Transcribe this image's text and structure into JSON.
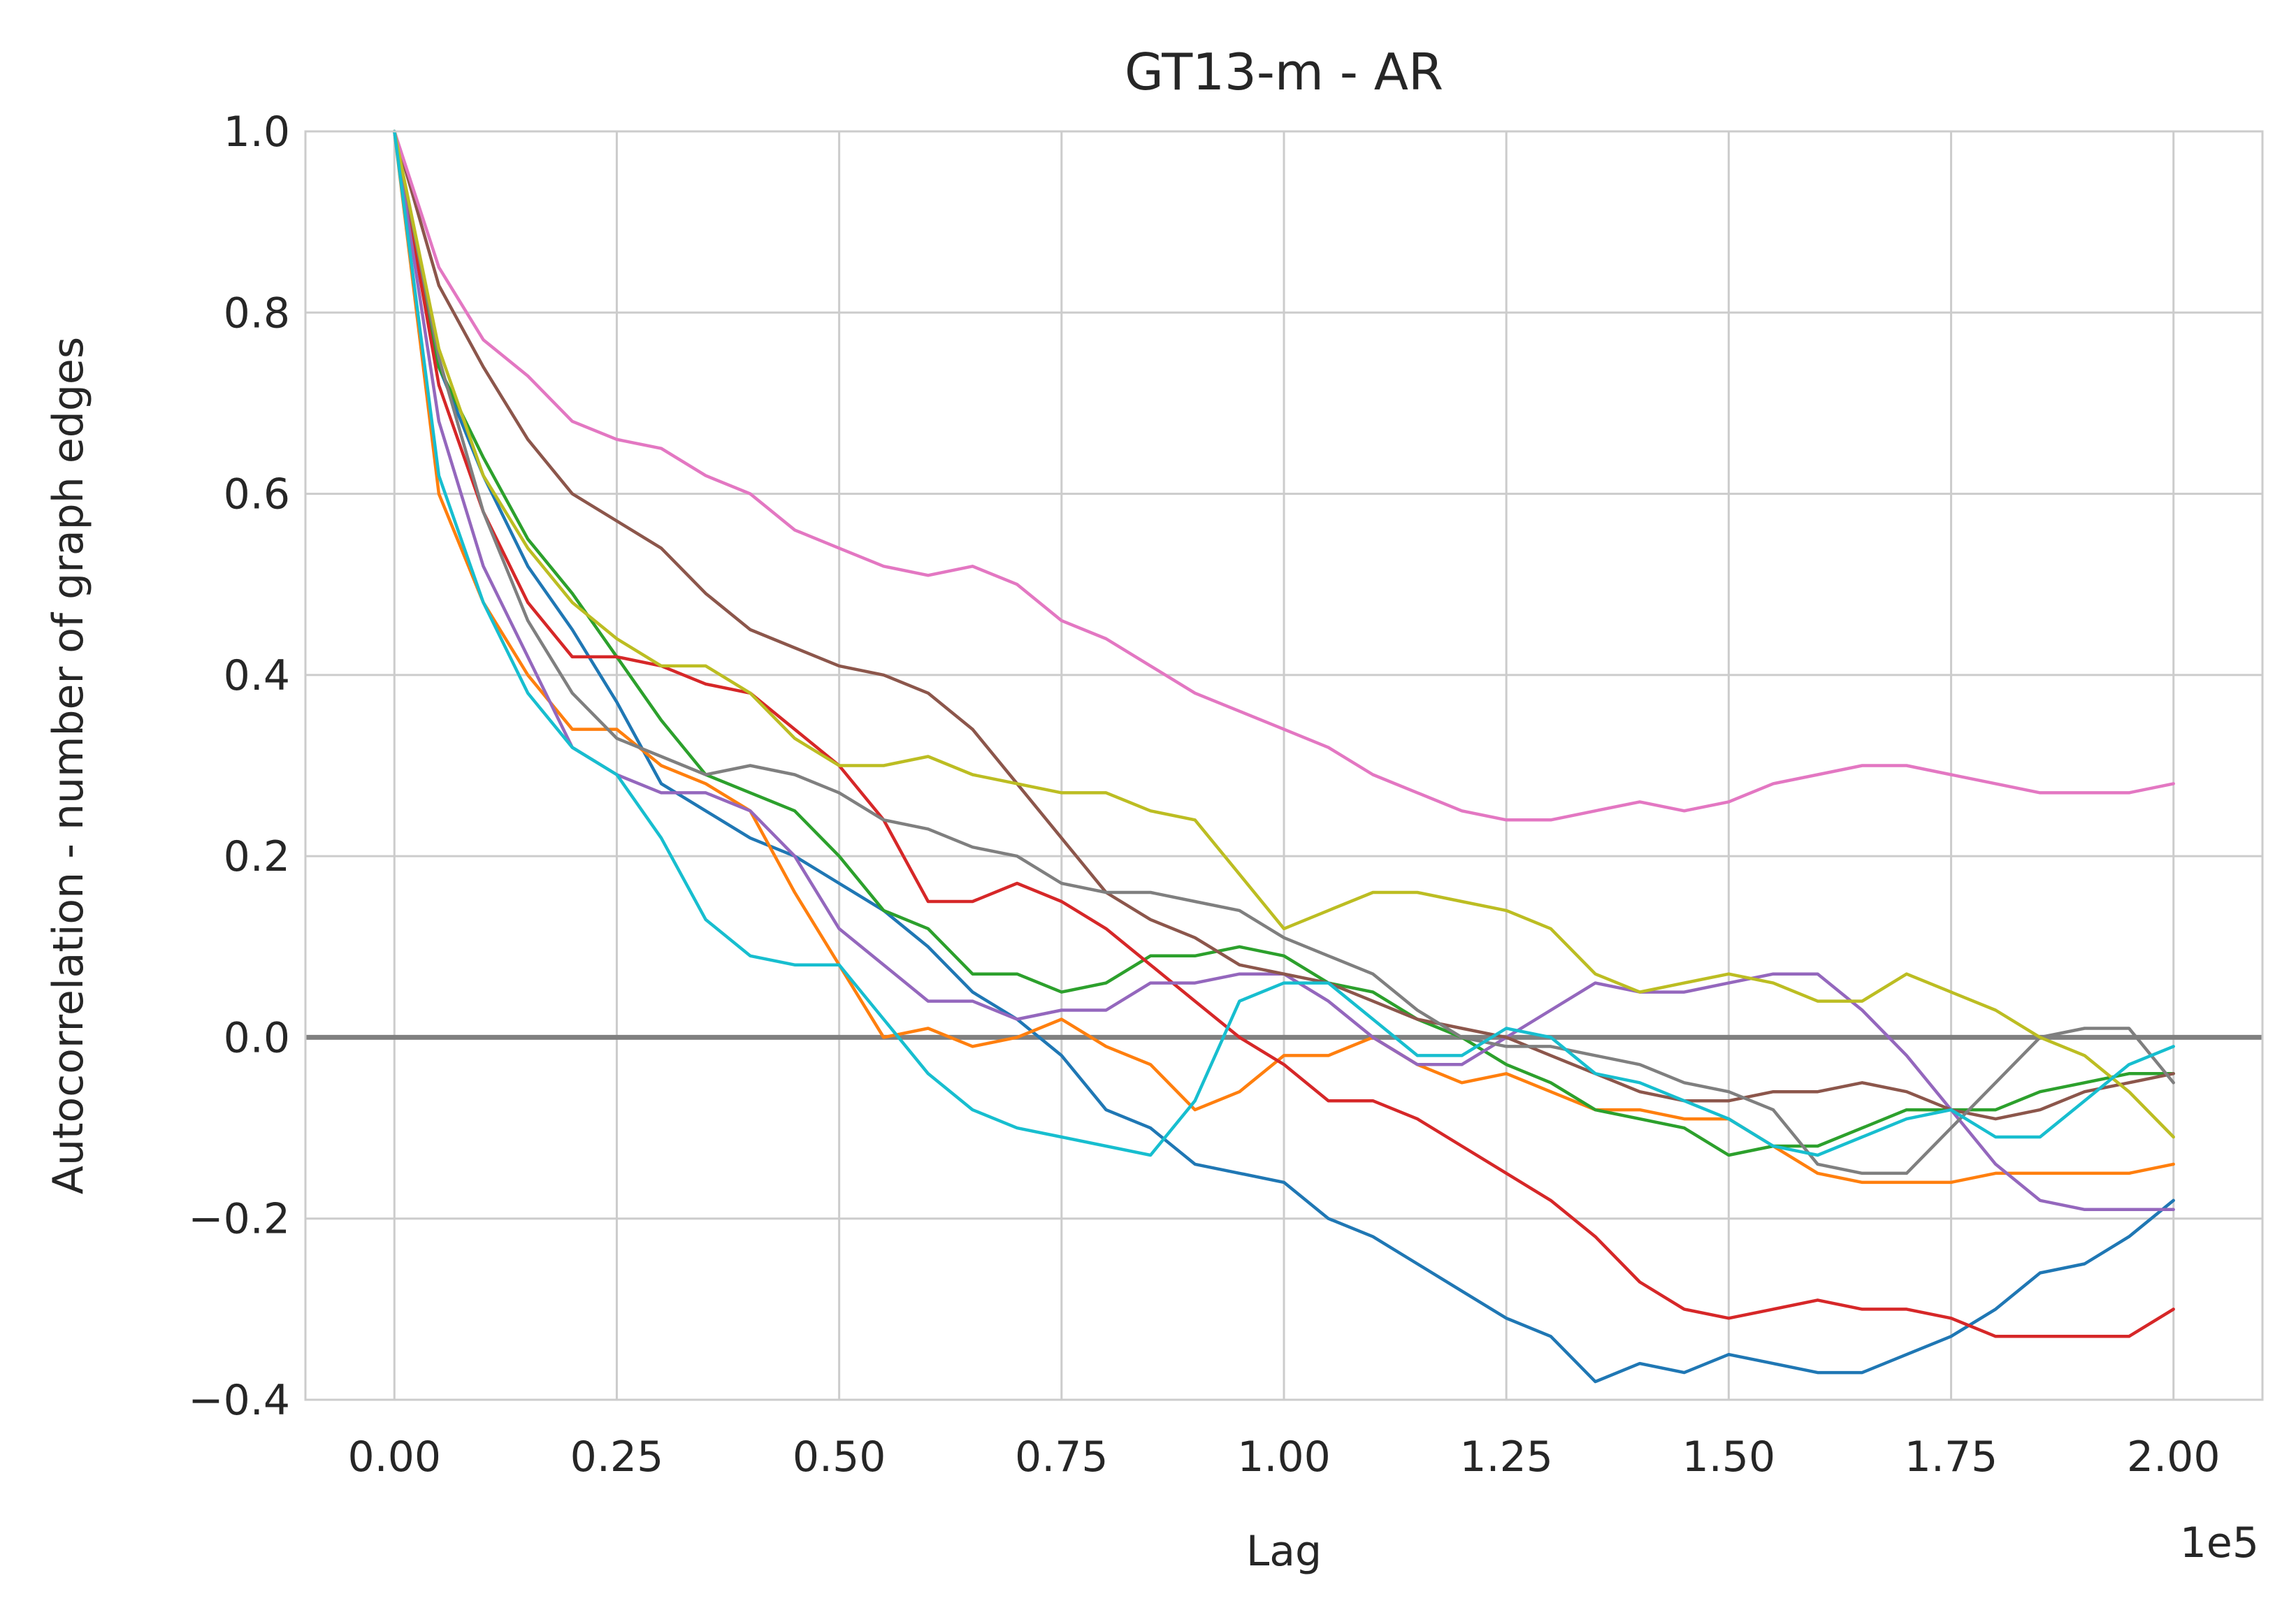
{
  "chart_data": {
    "type": "line",
    "title": "GT13-m - AR",
    "xlabel": "Lag",
    "ylabel": "Autocorrelation - number of graph edges",
    "x_offset_text": "1e5",
    "xlim": [
      -0.1,
      2.1
    ],
    "ylim": [
      -0.4,
      1.0
    ],
    "grid": true,
    "legend": "none",
    "x_ticks": [
      0.0,
      0.25,
      0.5,
      0.75,
      1.0,
      1.25,
      1.5,
      1.75,
      2.0
    ],
    "x_tick_labels": [
      "0.00",
      "0.25",
      "0.50",
      "0.75",
      "1.00",
      "1.25",
      "1.50",
      "1.75",
      "2.00"
    ],
    "y_ticks": [
      -0.4,
      -0.2,
      0.0,
      0.2,
      0.4,
      0.6,
      0.8,
      1.0
    ],
    "y_tick_labels": [
      "−0.4",
      "−0.2",
      "0.0",
      "0.2",
      "0.4",
      "0.6",
      "0.8",
      "1.0"
    ],
    "reference_line": {
      "y": 0.0,
      "color": "#808080"
    },
    "x": [
      0.0,
      0.05,
      0.1,
      0.15,
      0.2,
      0.25,
      0.3,
      0.35,
      0.4,
      0.45,
      0.5,
      0.55,
      0.6,
      0.65,
      0.7,
      0.75,
      0.8,
      0.85,
      0.9,
      0.95,
      1.0,
      1.05,
      1.1,
      1.15,
      1.2,
      1.25,
      1.3,
      1.35,
      1.4,
      1.45,
      1.5,
      1.55,
      1.6,
      1.65,
      1.7,
      1.75,
      1.8,
      1.85,
      1.9,
      1.95,
      2.0
    ],
    "series": [
      {
        "color": "#1f77b4",
        "values": [
          1.0,
          0.74,
          0.62,
          0.52,
          0.45,
          0.37,
          0.28,
          0.25,
          0.22,
          0.2,
          0.17,
          0.14,
          0.1,
          0.05,
          0.02,
          -0.02,
          -0.08,
          -0.1,
          -0.14,
          -0.15,
          -0.16,
          -0.2,
          -0.22,
          -0.25,
          -0.28,
          -0.31,
          -0.33,
          -0.38,
          -0.36,
          -0.37,
          -0.35,
          -0.36,
          -0.37,
          -0.37,
          -0.35,
          -0.33,
          -0.3,
          -0.26,
          -0.25,
          -0.22,
          -0.18
        ]
      },
      {
        "color": "#ff7f0e",
        "values": [
          1.0,
          0.6,
          0.48,
          0.4,
          0.34,
          0.34,
          0.3,
          0.28,
          0.25,
          0.16,
          0.08,
          0.0,
          0.01,
          -0.01,
          0.0,
          0.02,
          -0.01,
          -0.03,
          -0.08,
          -0.06,
          -0.02,
          -0.02,
          0.0,
          -0.03,
          -0.05,
          -0.04,
          -0.06,
          -0.08,
          -0.08,
          -0.09,
          -0.09,
          -0.12,
          -0.15,
          -0.16,
          -0.16,
          -0.16,
          -0.15,
          -0.15,
          -0.15,
          -0.15,
          -0.14
        ]
      },
      {
        "color": "#2ca02c",
        "values": [
          1.0,
          0.74,
          0.64,
          0.55,
          0.49,
          0.42,
          0.35,
          0.29,
          0.27,
          0.25,
          0.2,
          0.14,
          0.12,
          0.07,
          0.07,
          0.05,
          0.06,
          0.09,
          0.09,
          0.1,
          0.09,
          0.06,
          0.05,
          0.02,
          0.0,
          -0.03,
          -0.05,
          -0.08,
          -0.09,
          -0.1,
          -0.13,
          -0.12,
          -0.12,
          -0.1,
          -0.08,
          -0.08,
          -0.08,
          -0.06,
          -0.05,
          -0.04,
          -0.04
        ]
      },
      {
        "color": "#d62728",
        "values": [
          1.0,
          0.72,
          0.58,
          0.48,
          0.42,
          0.42,
          0.41,
          0.39,
          0.38,
          0.34,
          0.3,
          0.24,
          0.15,
          0.15,
          0.17,
          0.15,
          0.12,
          0.08,
          0.04,
          0.0,
          -0.03,
          -0.07,
          -0.07,
          -0.09,
          -0.12,
          -0.15,
          -0.18,
          -0.22,
          -0.27,
          -0.3,
          -0.31,
          -0.3,
          -0.29,
          -0.3,
          -0.3,
          -0.31,
          -0.33,
          -0.33,
          -0.33,
          -0.33,
          -0.3
        ]
      },
      {
        "color": "#9467bd",
        "values": [
          1.0,
          0.68,
          0.52,
          0.42,
          0.32,
          0.29,
          0.27,
          0.27,
          0.25,
          0.2,
          0.12,
          0.08,
          0.04,
          0.04,
          0.02,
          0.03,
          0.03,
          0.06,
          0.06,
          0.07,
          0.07,
          0.04,
          0.0,
          -0.03,
          -0.03,
          0.0,
          0.03,
          0.06,
          0.05,
          0.05,
          0.06,
          0.07,
          0.07,
          0.03,
          -0.02,
          -0.08,
          -0.14,
          -0.18,
          -0.19,
          -0.19,
          -0.19
        ]
      },
      {
        "color": "#8c564b",
        "values": [
          1.0,
          0.83,
          0.74,
          0.66,
          0.6,
          0.57,
          0.54,
          0.49,
          0.45,
          0.43,
          0.41,
          0.4,
          0.38,
          0.34,
          0.28,
          0.22,
          0.16,
          0.13,
          0.11,
          0.08,
          0.07,
          0.06,
          0.04,
          0.02,
          0.01,
          0.0,
          -0.02,
          -0.04,
          -0.06,
          -0.07,
          -0.07,
          -0.06,
          -0.06,
          -0.05,
          -0.06,
          -0.08,
          -0.09,
          -0.08,
          -0.06,
          -0.05,
          -0.04
        ]
      },
      {
        "color": "#e377c2",
        "values": [
          1.0,
          0.85,
          0.77,
          0.73,
          0.68,
          0.66,
          0.65,
          0.62,
          0.6,
          0.56,
          0.54,
          0.52,
          0.51,
          0.52,
          0.5,
          0.46,
          0.44,
          0.41,
          0.38,
          0.36,
          0.34,
          0.32,
          0.29,
          0.27,
          0.25,
          0.24,
          0.24,
          0.25,
          0.26,
          0.25,
          0.26,
          0.28,
          0.29,
          0.3,
          0.3,
          0.29,
          0.28,
          0.27,
          0.27,
          0.27,
          0.28
        ]
      },
      {
        "color": "#7f7f7f",
        "values": [
          1.0,
          0.75,
          0.58,
          0.46,
          0.38,
          0.33,
          0.31,
          0.29,
          0.3,
          0.29,
          0.27,
          0.24,
          0.23,
          0.21,
          0.2,
          0.17,
          0.16,
          0.16,
          0.15,
          0.14,
          0.11,
          0.09,
          0.07,
          0.03,
          0.0,
          -0.01,
          -0.01,
          -0.02,
          -0.03,
          -0.05,
          -0.06,
          -0.08,
          -0.14,
          -0.15,
          -0.15,
          -0.1,
          -0.05,
          0.0,
          0.01,
          0.01,
          -0.05
        ]
      },
      {
        "color": "#bcbd22",
        "values": [
          1.0,
          0.76,
          0.62,
          0.54,
          0.48,
          0.44,
          0.41,
          0.41,
          0.38,
          0.33,
          0.3,
          0.3,
          0.31,
          0.29,
          0.28,
          0.27,
          0.27,
          0.25,
          0.24,
          0.18,
          0.12,
          0.14,
          0.16,
          0.16,
          0.15,
          0.14,
          0.12,
          0.07,
          0.05,
          0.06,
          0.07,
          0.06,
          0.04,
          0.04,
          0.07,
          0.05,
          0.03,
          0.0,
          -0.02,
          -0.06,
          -0.11
        ]
      },
      {
        "color": "#17becf",
        "values": [
          1.0,
          0.62,
          0.48,
          0.38,
          0.32,
          0.29,
          0.22,
          0.13,
          0.09,
          0.08,
          0.08,
          0.02,
          -0.04,
          -0.08,
          -0.1,
          -0.11,
          -0.12,
          -0.13,
          -0.07,
          0.04,
          0.06,
          0.06,
          0.02,
          -0.02,
          -0.02,
          0.01,
          0.0,
          -0.04,
          -0.05,
          -0.07,
          -0.09,
          -0.12,
          -0.13,
          -0.11,
          -0.09,
          -0.08,
          -0.11,
          -0.11,
          -0.07,
          -0.03,
          -0.01
        ]
      }
    ]
  }
}
